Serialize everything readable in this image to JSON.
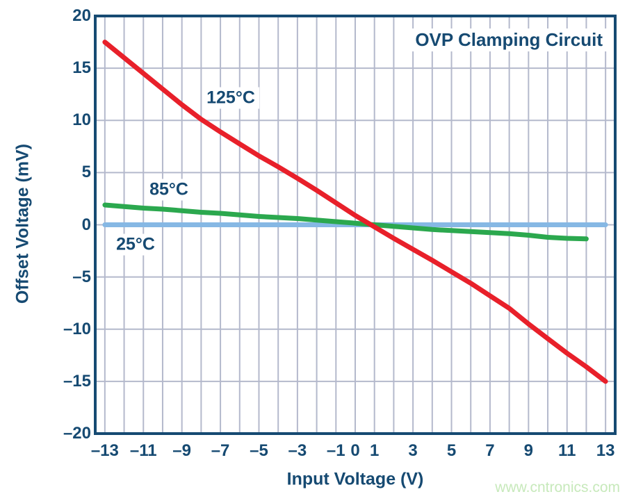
{
  "chart_data": {
    "type": "line",
    "title": "OVP Clamping Circuit",
    "xlabel": "Input Voltage (V)",
    "ylabel": "Offset Voltage (mV)",
    "xlim": [
      -13.5,
      13.5
    ],
    "ylim": [
      -20,
      20
    ],
    "grid": true,
    "x_grid_step": 1,
    "y_grid_step": 5,
    "x_tick_values": [
      -13,
      -11,
      -9,
      -7,
      -5,
      -3,
      -1,
      0,
      1,
      3,
      5,
      7,
      9,
      11,
      13
    ],
    "x_tick_labels": [
      "–13",
      "–11",
      "–9",
      "–7",
      "–5",
      "–3",
      "–1",
      "0",
      "1",
      "3",
      "5",
      "7",
      "9",
      "11",
      "13"
    ],
    "y_tick_values": [
      20,
      15,
      10,
      5,
      0,
      -5,
      -10,
      -15,
      -20
    ],
    "y_tick_labels": [
      "20",
      "15",
      "10",
      "5",
      "0",
      "–5",
      "–10",
      "–15",
      "–20"
    ],
    "legend_position": "labels-on-plot",
    "colors": {
      "frame": "#164a72",
      "grid": "#b4b9cc",
      "text": "#164a72"
    },
    "series": [
      {
        "id": "125c",
        "name": "125°C",
        "color": "#e8202a",
        "line_width": 7,
        "points": [
          [
            -13,
            17.5
          ],
          [
            -12,
            16
          ],
          [
            -11,
            14.5
          ],
          [
            -10,
            13
          ],
          [
            -9,
            11.5
          ],
          [
            -8,
            10.1
          ],
          [
            -7,
            8.9
          ],
          [
            -6,
            7.75
          ],
          [
            -5,
            6.6
          ],
          [
            -4,
            5.55
          ],
          [
            -3,
            4.45
          ],
          [
            -2,
            3.3
          ],
          [
            -1,
            2.1
          ],
          [
            0,
            0.9
          ],
          [
            1,
            -0.2
          ],
          [
            2,
            -1.3
          ],
          [
            3,
            -2.35
          ],
          [
            4,
            -3.4
          ],
          [
            5,
            -4.5
          ],
          [
            6,
            -5.6
          ],
          [
            7,
            -6.8
          ],
          [
            8,
            -8
          ],
          [
            9,
            -9.5
          ],
          [
            10,
            -10.9
          ],
          [
            11,
            -12.3
          ],
          [
            12,
            -13.6
          ],
          [
            13,
            -15
          ]
        ]
      },
      {
        "id": "85c",
        "name": "85°C",
        "color": "#2ba84e",
        "line_width": 7,
        "points": [
          [
            -13,
            1.9
          ],
          [
            -12,
            1.75
          ],
          [
            -11,
            1.6
          ],
          [
            -10,
            1.5
          ],
          [
            -9,
            1.35
          ],
          [
            -8,
            1.2
          ],
          [
            -7,
            1.1
          ],
          [
            -6,
            0.95
          ],
          [
            -5,
            0.8
          ],
          [
            -4,
            0.7
          ],
          [
            -3,
            0.6
          ],
          [
            -2,
            0.45
          ],
          [
            -1,
            0.3
          ],
          [
            0,
            0.15
          ],
          [
            1,
            0
          ],
          [
            2,
            -0.15
          ],
          [
            3,
            -0.3
          ],
          [
            4,
            -0.45
          ],
          [
            5,
            -0.55
          ],
          [
            6,
            -0.65
          ],
          [
            7,
            -0.75
          ],
          [
            8,
            -0.85
          ],
          [
            9,
            -1
          ],
          [
            10,
            -1.2
          ],
          [
            11,
            -1.3
          ],
          [
            12,
            -1.35
          ]
        ]
      },
      {
        "id": "25c",
        "name": "25°C",
        "color": "#86b8e4",
        "line_width": 7,
        "points": [
          [
            -13,
            0
          ],
          [
            13,
            0
          ]
        ]
      }
    ]
  },
  "watermark": {
    "text": "www.cntronics.com",
    "color": "#c7e9bb"
  }
}
